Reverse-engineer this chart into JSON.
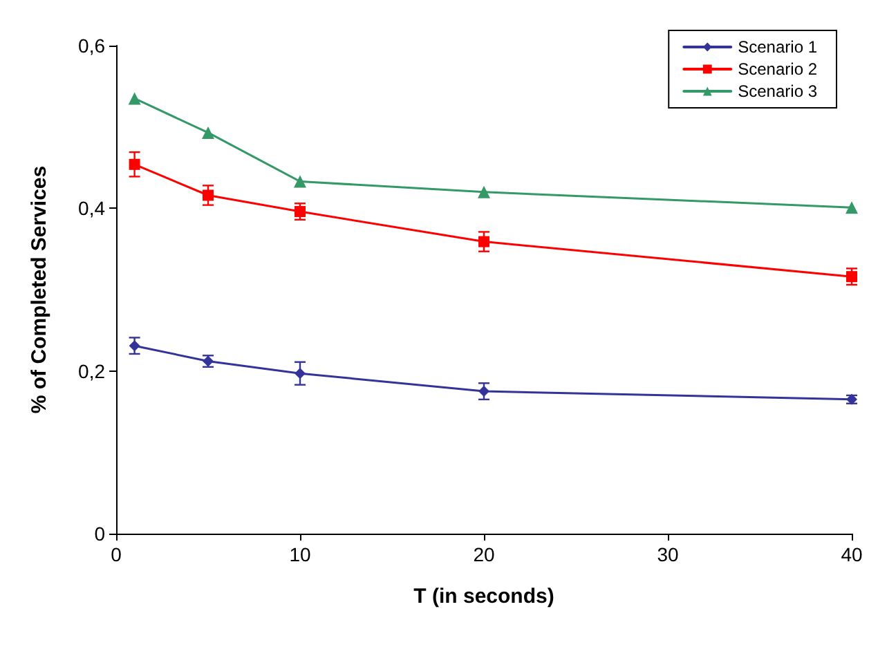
{
  "chart_data": {
    "type": "line",
    "xlabel": "T (in seconds)",
    "ylabel": "% of Completed Services",
    "x": [
      1,
      5,
      10,
      20,
      40
    ],
    "xlim": [
      0,
      40
    ],
    "xticks": [
      0,
      10,
      20,
      30,
      40
    ],
    "ylim": [
      0,
      0.6
    ],
    "yticks": [
      0,
      {
        "value": 0.2,
        "label": "0,2"
      },
      {
        "value": 0.4,
        "label": "0,4"
      },
      {
        "value": 0.6,
        "label": "0,6"
      }
    ],
    "grid": false,
    "legend": "top right",
    "line_style": "solid",
    "series": [
      {
        "name": "Scenario 1",
        "color": "#333399",
        "marker": "diamond",
        "values": [
          0.231,
          0.212,
          0.197,
          0.175,
          0.165
        ],
        "errors": [
          0.01,
          0.007,
          0.014,
          0.01,
          0.005
        ]
      },
      {
        "name": "Scenario 2",
        "color": "#ff0000",
        "marker": "square",
        "values": [
          0.454,
          0.416,
          0.396,
          0.359,
          0.316
        ],
        "errors": [
          0.015,
          0.012,
          0.01,
          0.012,
          0.01
        ]
      },
      {
        "name": "Scenario 3",
        "color": "#339966",
        "marker": "triangle",
        "values": [
          0.535,
          0.493,
          0.433,
          0.42,
          0.401
        ]
      }
    ]
  }
}
